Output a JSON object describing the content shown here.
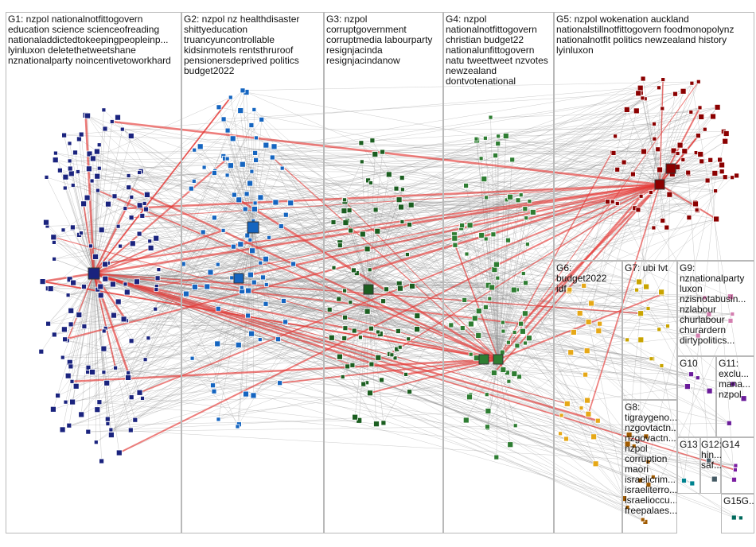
{
  "groups": [
    {
      "id": "G1",
      "label": "G1: nzpol nationalnotfittogovern\neducation science scienceofreading\nnationaladdictedtokeepingpeopleinp...\nlyinluxon deletethetweetshane\nnznationalparty noincentivetoworkhard",
      "color": "#1a237e"
    },
    {
      "id": "G2",
      "label": "G2: nzpol nz healthdisaster\nshittyeducation\ntruancyuncontrollable\nkidsinmotels rentsthruroof\npensionersdeprived politics\nbudget2022",
      "color": "#1565c0"
    },
    {
      "id": "G3",
      "label": "G3: nzpol\ncorruptgovernment\ncorruptmedia labourparty\nresignjacinda\nresignjacindanow",
      "color": "#1b5e20"
    },
    {
      "id": "G4",
      "label": "G4: nzpol\nnationalnotfittogovern\nchristian budget22\nnationalunfittogovern\nnatu tweettweet nzvotes\nnewzealand\ndontvotenational",
      "color": "#2e7d32"
    },
    {
      "id": "G5",
      "label": "G5: nzpol wokenation auckland\nnationalstillnotfittogovern foodmonopolynz\nnationalnotfit politics newzealand history\nlyinluxon",
      "color": "#8b0000"
    },
    {
      "id": "G6",
      "label": "G6:\nbudget2022\nidf",
      "color": "#e6a817"
    },
    {
      "id": "G7",
      "label": "G7: ubi lvt",
      "color": "#c9a400"
    },
    {
      "id": "G8",
      "label": "G8:\ntigraygeno...\nnzgovtactn...\nnzgovactn...\nnzpol\ncorruption\nmaori\nisraelicrim...\nisraeliterro...\nisraelioccu...\nfreepalaes...",
      "color": "#a05a00"
    },
    {
      "id": "G9",
      "label": "G9:\nnznationalparty\nluxon\nnzisnotabusin...\nnzlabour\nchurlabour\nchurardern\ndirtypolitics...",
      "color": "#d47fb0"
    },
    {
      "id": "G10",
      "label": "G10",
      "color": "#6a1b9a"
    },
    {
      "id": "G11",
      "label": "G11:\nexclu...\nmana...\nnzpol",
      "color": "#6a1b9a"
    },
    {
      "id": "G12",
      "label": "G12:\nhin...\nsaf...",
      "color": "#455a64"
    },
    {
      "id": "G13",
      "label": "G13",
      "color": "#00838f"
    },
    {
      "id": "G14",
      "label": "G14",
      "color": "#7b1fa2"
    },
    {
      "id": "G15",
      "label": "G15G...",
      "color": "#00695c"
    }
  ]
}
